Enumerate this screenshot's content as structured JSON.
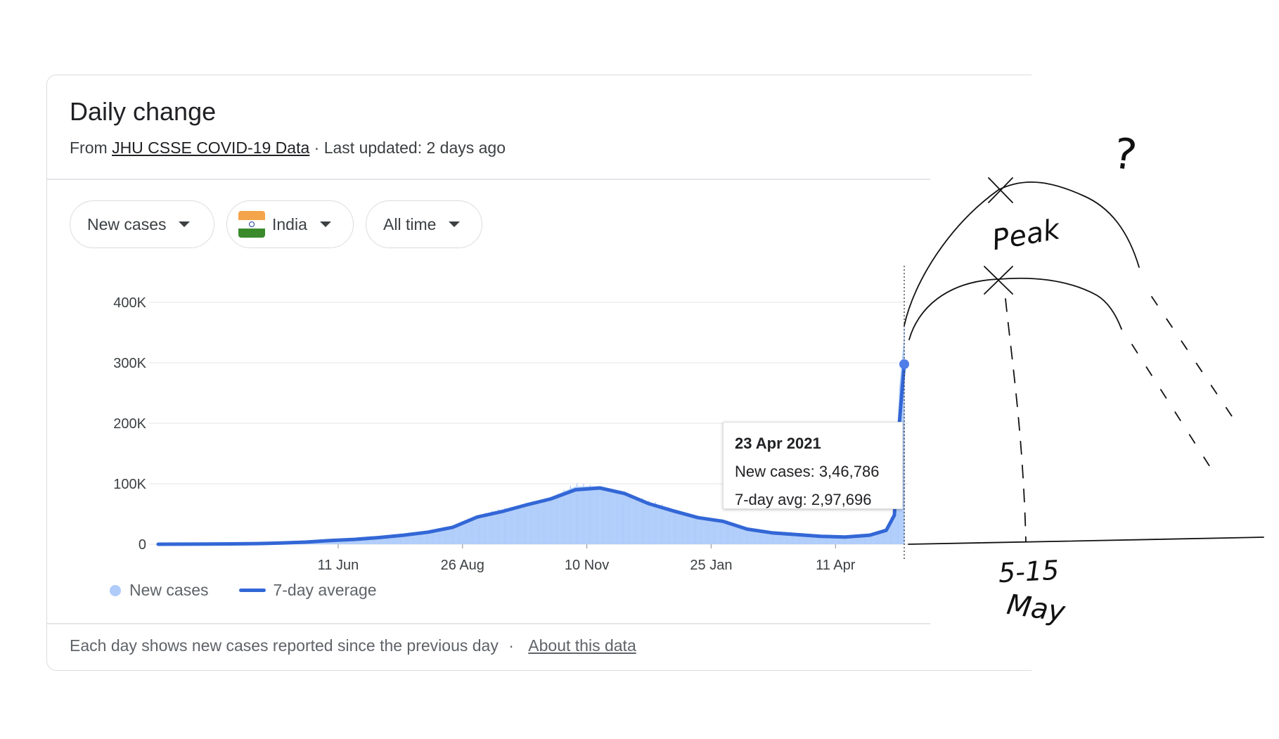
{
  "header": {
    "title": "Daily change",
    "source_prefix": "From",
    "source_link": "JHU CSSE COVID-19 Data",
    "updated": "· Last updated: 2 days ago"
  },
  "filters": {
    "metric": "New cases",
    "country": "India",
    "range": "All time"
  },
  "colors": {
    "bars": "#aecbfa",
    "line": "#3367d6",
    "grid": "#e8eaed",
    "flag_saffron": "#f4a44a",
    "flag_green": "#3a8a2c"
  },
  "tooltip": {
    "date": "23 Apr 2021",
    "new_cases": "New cases: 3,46,786",
    "avg": "7-day avg: 2,97,696"
  },
  "legend": {
    "bars": "New cases",
    "line": "7-day average"
  },
  "footer": {
    "note": "Each day shows new cases reported since the previous day",
    "separator": "·",
    "link": "About this data"
  },
  "annotations": {
    "question": "?",
    "peak": "Peak",
    "range": "5-15",
    "month": "May"
  },
  "chart_data": {
    "type": "line",
    "title": "",
    "xlabel": "",
    "ylabel": "",
    "x_tick_labels": [
      "11 Jun",
      "26 Aug",
      "10 Nov",
      "25 Jan",
      "11 Apr"
    ],
    "y_tick_labels": [
      "0",
      "100K",
      "200K",
      "300K",
      "400K"
    ],
    "y_ticks": [
      0,
      100000,
      200000,
      300000,
      400000
    ],
    "ylim": [
      0,
      400000
    ],
    "x_days": [
      0,
      15,
      30,
      45,
      60,
      75,
      90,
      105,
      120,
      135,
      150,
      165,
      180,
      195,
      210,
      225,
      240,
      255,
      270,
      285,
      300,
      315,
      330,
      345,
      360,
      375,
      390,
      405,
      420,
      435,
      445,
      450,
      453,
      456
    ],
    "x_tick_days": [
      110,
      186,
      262,
      338,
      414
    ],
    "series": [
      {
        "name": "7-day average",
        "values": [
          0,
          100,
          300,
          600,
          1000,
          2000,
          3500,
          6000,
          8000,
          11000,
          15000,
          20000,
          28000,
          45000,
          54000,
          65000,
          75000,
          90000,
          93000,
          84000,
          67000,
          55000,
          44000,
          38000,
          25000,
          19000,
          16000,
          13000,
          12000,
          15000,
          23000,
          48000,
          200000,
          298000
        ]
      },
      {
        "name": "New cases",
        "values": [
          0,
          120,
          350,
          650,
          1100,
          2100,
          3700,
          6200,
          8500,
          11500,
          16000,
          21000,
          29000,
          47000,
          56000,
          67000,
          78000,
          95000,
          96000,
          87000,
          69000,
          57000,
          46000,
          40000,
          26000,
          20000,
          17000,
          14000,
          13000,
          16000,
          25000,
          55000,
          260000,
          346786
        ]
      }
    ],
    "legend_position": "bottom-left",
    "grid": true,
    "highlight": {
      "day": 456,
      "date": "23 Apr 2021",
      "new_cases": 346786,
      "avg": 297696
    }
  }
}
